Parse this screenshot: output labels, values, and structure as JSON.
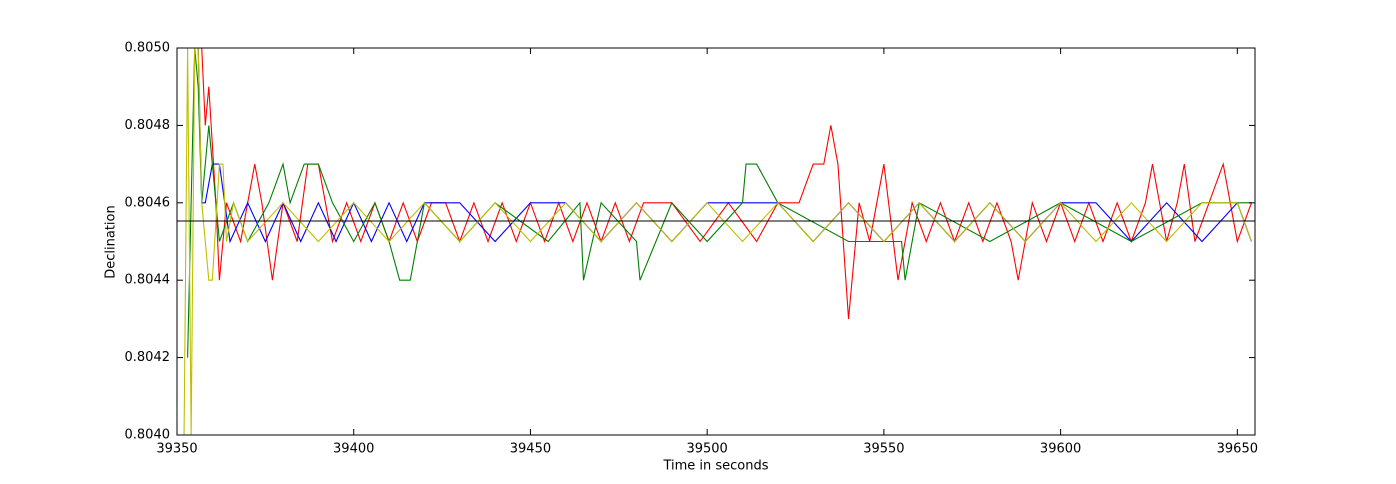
{
  "chart_data": {
    "type": "line",
    "xlabel": "Time in seconds",
    "ylabel": "Declination",
    "xlim": [
      39350,
      39655
    ],
    "xticks": [
      39350,
      39400,
      39450,
      39500,
      39550,
      39600,
      39650
    ],
    "ylim": [
      0.804,
      0.805
    ],
    "yticks": [
      {
        "value": 0.804,
        "label": "0.8040"
      },
      {
        "value": 0.8042,
        "label": "0.8042"
      },
      {
        "value": 0.8044,
        "label": "0.8044"
      },
      {
        "value": 0.8046,
        "label": "0.8046"
      },
      {
        "value": 0.8048,
        "label": "0.8048"
      },
      {
        "value": 0.805,
        "label": "0.8050"
      }
    ],
    "hline": 0.804553,
    "hline_color": "#000000",
    "series": [
      {
        "color": "#ff0000",
        "x": [
          39357,
          39358,
          39359,
          39361,
          39362,
          39364,
          39368,
          39372,
          39374,
          39377,
          39380,
          39384,
          39387,
          39390,
          39394,
          39398,
          39402,
          39406,
          39410,
          39414,
          39418,
          39422,
          39426,
          39430,
          39434,
          39438,
          39442,
          39446,
          39450,
          39454,
          39458,
          39462,
          39466,
          39470,
          39474,
          39478,
          39482,
          39490,
          39498,
          39506,
          39514,
          39520,
          39526,
          39530,
          39533,
          39535,
          39537,
          39540,
          39543,
          39546,
          39550,
          39554,
          39558,
          39562,
          39566,
          39570,
          39574,
          39578,
          39582,
          39586,
          39588,
          39592,
          39596,
          39600,
          39604,
          39608,
          39612,
          39616,
          39620,
          39624,
          39626,
          39630,
          39633,
          39635,
          39638,
          39642,
          39646,
          39650,
          39654
        ],
        "values": [
          0.805,
          0.8048,
          0.8049,
          0.8046,
          0.8044,
          0.8046,
          0.8045,
          0.8047,
          0.8046,
          0.8044,
          0.8046,
          0.8045,
          0.8047,
          0.8047,
          0.8045,
          0.8046,
          0.8045,
          0.8046,
          0.8045,
          0.8046,
          0.8045,
          0.8046,
          0.8046,
          0.8045,
          0.8046,
          0.8045,
          0.8046,
          0.8045,
          0.8046,
          0.8045,
          0.8046,
          0.8045,
          0.8046,
          0.8045,
          0.8046,
          0.8045,
          0.8046,
          0.8046,
          0.8045,
          0.8046,
          0.8045,
          0.8046,
          0.8046,
          0.8047,
          0.8047,
          0.8048,
          0.8047,
          0.8043,
          0.8046,
          0.8045,
          0.8047,
          0.8044,
          0.8046,
          0.8045,
          0.8046,
          0.8045,
          0.8046,
          0.8045,
          0.8046,
          0.8045,
          0.8044,
          0.8046,
          0.8045,
          0.8046,
          0.8045,
          0.8046,
          0.8045,
          0.8046,
          0.8045,
          0.8046,
          0.8047,
          0.8045,
          0.8046,
          0.8047,
          0.8045,
          0.8046,
          0.8047,
          0.8045,
          0.8046
        ]
      },
      {
        "color": "#0000ff",
        "x": [
          39354,
          39356,
          39357,
          39358,
          39360,
          39362,
          39365,
          39370,
          39375,
          39380,
          39385,
          39390,
          39395,
          39400,
          39405,
          39410,
          39415,
          39420,
          39430,
          39440,
          39450,
          39460,
          39470,
          39480,
          39490,
          39500,
          39510,
          39520,
          39530,
          39540,
          39550,
          39560,
          39570,
          39580,
          39590,
          39600,
          39610,
          39620,
          39630,
          39640,
          39650,
          39654
        ],
        "values": [
          0.805,
          0.805,
          0.8046,
          0.8046,
          0.8047,
          0.8047,
          0.8045,
          0.8046,
          0.8045,
          0.8046,
          0.8045,
          0.8046,
          0.8045,
          0.8046,
          0.8045,
          0.8046,
          0.8045,
          0.8046,
          0.8046,
          0.8045,
          0.8046,
          0.8046,
          0.8045,
          0.8046,
          0.8045,
          0.8046,
          0.8046,
          0.8046,
          0.8045,
          0.8046,
          0.8045,
          0.8046,
          0.8045,
          0.8046,
          0.8045,
          0.8046,
          0.8046,
          0.8045,
          0.8046,
          0.8045,
          0.8046,
          0.8045
        ]
      },
      {
        "color": "#008000",
        "x": [
          39353,
          39355,
          39356,
          39357,
          39359,
          39362,
          39366,
          39370,
          39376,
          39380,
          39382,
          39386,
          39390,
          39394,
          39400,
          39406,
          39410,
          39413,
          39416,
          39420,
          39430,
          39440,
          39455,
          39464,
          39465,
          39470,
          39480,
          39481,
          39490,
          39500,
          39510,
          39511,
          39514,
          39520,
          39540,
          39555,
          39556,
          39560,
          39580,
          39600,
          39620,
          39640,
          39654
        ],
        "values": [
          0.8042,
          0.805,
          0.8049,
          0.8046,
          0.8048,
          0.8045,
          0.8046,
          0.8045,
          0.8046,
          0.8047,
          0.8046,
          0.8047,
          0.8047,
          0.8046,
          0.8045,
          0.8046,
          0.8045,
          0.8044,
          0.8044,
          0.8046,
          0.8045,
          0.8046,
          0.8045,
          0.8046,
          0.8044,
          0.8046,
          0.8045,
          0.8044,
          0.8046,
          0.8045,
          0.8046,
          0.8047,
          0.8047,
          0.8046,
          0.8045,
          0.8045,
          0.8044,
          0.8046,
          0.8045,
          0.8046,
          0.8045,
          0.8046,
          0.8046
        ]
      },
      {
        "color": "#bfbf00",
        "x": [
          39352,
          39353,
          39354,
          39355,
          39356,
          39357,
          39359,
          39360,
          39362,
          39363,
          39364,
          39366,
          39370,
          39380,
          39390,
          39400,
          39410,
          39420,
          39430,
          39440,
          39450,
          39460,
          39470,
          39480,
          39490,
          39500,
          39510,
          39520,
          39530,
          39540,
          39550,
          39560,
          39570,
          39580,
          39590,
          39600,
          39610,
          39620,
          39630,
          39640,
          39650,
          39654
        ],
        "values": [
          0.804,
          0.805,
          0.804,
          0.805,
          0.805,
          0.8046,
          0.8044,
          0.8044,
          0.8047,
          0.8047,
          0.8045,
          0.8046,
          0.8045,
          0.8046,
          0.8045,
          0.8046,
          0.8045,
          0.8046,
          0.8045,
          0.8046,
          0.8045,
          0.8046,
          0.8045,
          0.8046,
          0.8045,
          0.8046,
          0.8045,
          0.8046,
          0.8045,
          0.8046,
          0.8045,
          0.8046,
          0.8045,
          0.8046,
          0.8045,
          0.8046,
          0.8045,
          0.8046,
          0.8045,
          0.8046,
          0.8046,
          0.8045
        ]
      }
    ]
  }
}
